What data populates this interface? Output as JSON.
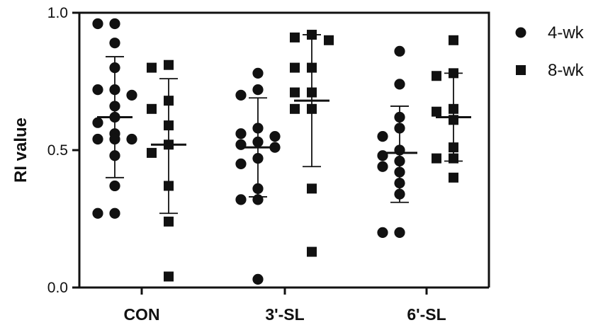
{
  "chart_data": {
    "type": "scatter",
    "ylabel": "RI value",
    "xlabel": "",
    "ylim": [
      0,
      1
    ],
    "yticks": [
      {
        "value": 0,
        "label": "0.0"
      },
      {
        "value": 0.5,
        "label": "0.5"
      },
      {
        "value": 1,
        "label": "1.0"
      }
    ],
    "categories": [
      "CON",
      "3'-SL",
      "6'-SL"
    ],
    "legend_position": "top-right",
    "grid": false,
    "series": [
      {
        "name": "4-wk",
        "marker": "circle",
        "color": "#111111",
        "groups": [
          {
            "mean": 0.62,
            "sd_low": 0.4,
            "sd_high": 0.84,
            "values": [
              0.96,
              0.96,
              0.89,
              0.8,
              0.72,
              0.72,
              0.7,
              0.66,
              0.62,
              0.6,
              0.56,
              0.54,
              0.54,
              0.54,
              0.48,
              0.37,
              0.27,
              0.27
            ]
          },
          {
            "mean": 0.51,
            "sd_low": 0.33,
            "sd_high": 0.69,
            "values": [
              0.78,
              0.72,
              0.7,
              0.58,
              0.56,
              0.55,
              0.53,
              0.52,
              0.51,
              0.47,
              0.45,
              0.36,
              0.32,
              0.32,
              0.03
            ]
          },
          {
            "mean": 0.49,
            "sd_low": 0.31,
            "sd_high": 0.66,
            "values": [
              0.86,
              0.74,
              0.62,
              0.58,
              0.55,
              0.5,
              0.48,
              0.46,
              0.44,
              0.42,
              0.38,
              0.34,
              0.2,
              0.2
            ]
          }
        ]
      },
      {
        "name": "8-wk",
        "marker": "square",
        "color": "#111111",
        "groups": [
          {
            "mean": 0.52,
            "sd_low": 0.27,
            "sd_high": 0.76,
            "values": [
              0.81,
              0.8,
              0.68,
              0.65,
              0.59,
              0.52,
              0.49,
              0.37,
              0.24,
              0.04
            ]
          },
          {
            "mean": 0.68,
            "sd_low": 0.44,
            "sd_high": 0.92,
            "values": [
              0.92,
              0.91,
              0.9,
              0.8,
              0.8,
              0.71,
              0.71,
              0.65,
              0.65,
              0.36,
              0.13
            ]
          },
          {
            "mean": 0.62,
            "sd_low": 0.46,
            "sd_high": 0.78,
            "values": [
              0.9,
              0.78,
              0.77,
              0.65,
              0.64,
              0.61,
              0.51,
              0.47,
              0.47,
              0.4
            ]
          }
        ]
      }
    ]
  }
}
